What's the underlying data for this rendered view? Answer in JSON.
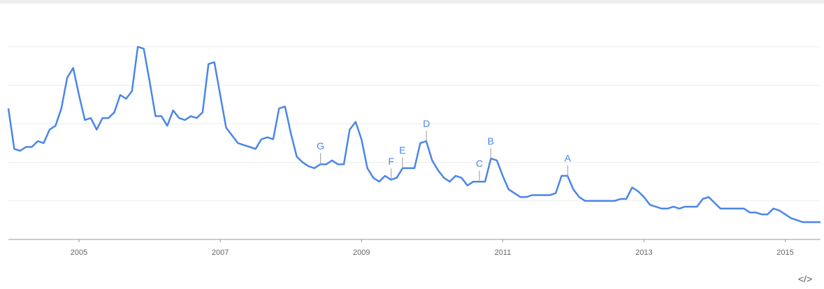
{
  "chart_data": {
    "type": "line",
    "x": [
      2004,
      2004.083,
      2004.167,
      2004.25,
      2004.333,
      2004.417,
      2004.5,
      2004.583,
      2004.667,
      2004.75,
      2004.833,
      2004.917,
      2005,
      2005.083,
      2005.167,
      2005.25,
      2005.333,
      2005.417,
      2005.5,
      2005.583,
      2005.667,
      2005.75,
      2005.833,
      2005.917,
      2006,
      2006.083,
      2006.167,
      2006.25,
      2006.333,
      2006.417,
      2006.5,
      2006.583,
      2006.667,
      2006.75,
      2006.833,
      2006.917,
      2007,
      2007.083,
      2007.167,
      2007.25,
      2007.333,
      2007.417,
      2007.5,
      2007.583,
      2007.667,
      2007.75,
      2007.833,
      2007.917,
      2008,
      2008.083,
      2008.167,
      2008.25,
      2008.333,
      2008.417,
      2008.5,
      2008.583,
      2008.667,
      2008.75,
      2008.833,
      2008.917,
      2009,
      2009.083,
      2009.167,
      2009.25,
      2009.333,
      2009.417,
      2009.5,
      2009.583,
      2009.667,
      2009.75,
      2009.833,
      2009.917,
      2010,
      2010.083,
      2010.167,
      2010.25,
      2010.333,
      2010.417,
      2010.5,
      2010.583,
      2010.667,
      2010.75,
      2010.833,
      2010.917,
      2011,
      2011.083,
      2011.167,
      2011.25,
      2011.333,
      2011.417,
      2011.5,
      2011.583,
      2011.667,
      2011.75,
      2011.833,
      2011.917,
      2012,
      2012.083,
      2012.167,
      2012.25,
      2012.333,
      2012.417,
      2012.5,
      2012.583,
      2012.667,
      2012.75,
      2012.833,
      2012.917,
      2013,
      2013.083,
      2013.167,
      2013.25,
      2013.333,
      2013.417,
      2013.5,
      2013.583,
      2013.667,
      2013.75,
      2013.833,
      2013.917,
      2014,
      2014.083,
      2014.167,
      2014.25,
      2014.333,
      2014.417,
      2014.5,
      2014.583,
      2014.667,
      2014.75,
      2014.833,
      2014.917,
      2015,
      2015.083,
      2015.167,
      2015.25,
      2015.333,
      2015.417,
      2015.5
    ],
    "series": [
      {
        "color": "#4a86e8",
        "values": [
          68,
          47,
          46,
          48,
          48,
          51,
          50,
          57,
          59,
          68,
          84,
          89,
          75,
          62,
          63,
          57,
          63,
          63,
          66,
          75,
          73,
          77,
          100,
          99,
          82,
          64,
          64,
          59,
          67,
          63,
          62,
          64,
          63,
          66,
          91,
          92,
          75,
          58,
          54,
          50,
          49,
          48,
          47,
          52,
          53,
          52,
          68,
          69,
          55,
          43,
          40,
          38,
          37,
          39,
          39,
          41,
          39,
          39,
          57,
          61,
          52,
          37,
          32,
          30,
          33,
          31,
          32,
          37,
          37,
          37,
          50,
          51,
          41,
          36,
          32,
          30,
          33,
          32,
          28,
          30,
          30,
          30,
          42,
          41,
          33,
          26,
          24,
          22,
          22,
          23,
          23,
          23,
          23,
          24,
          33,
          33,
          26,
          22,
          20,
          20,
          20,
          20,
          20,
          20,
          21,
          21,
          27,
          25,
          22,
          18,
          17,
          16,
          16,
          17,
          16,
          17,
          17,
          17,
          21,
          22,
          19,
          16,
          16,
          16,
          16,
          16,
          14,
          14,
          13,
          13,
          16,
          15,
          13,
          11,
          10,
          9,
          9,
          9,
          9
        ]
      }
    ],
    "xlim": [
      2004,
      2015.5
    ],
    "xticks": [
      2005,
      2007,
      2009,
      2011,
      2013,
      2015
    ],
    "ylim": [
      0,
      100
    ],
    "yticks": [
      20,
      40,
      60,
      80,
      100
    ],
    "grid": true,
    "annotations": [
      {
        "label": "A",
        "x": 2011.92
      },
      {
        "label": "B",
        "x": 2010.83
      },
      {
        "label": "C",
        "x": 2010.67
      },
      {
        "label": "D",
        "x": 2009.92
      },
      {
        "label": "E",
        "x": 2009.58
      },
      {
        "label": "F",
        "x": 2009.42
      },
      {
        "label": "G",
        "x": 2008.42
      }
    ],
    "embed_icon": "</>"
  }
}
